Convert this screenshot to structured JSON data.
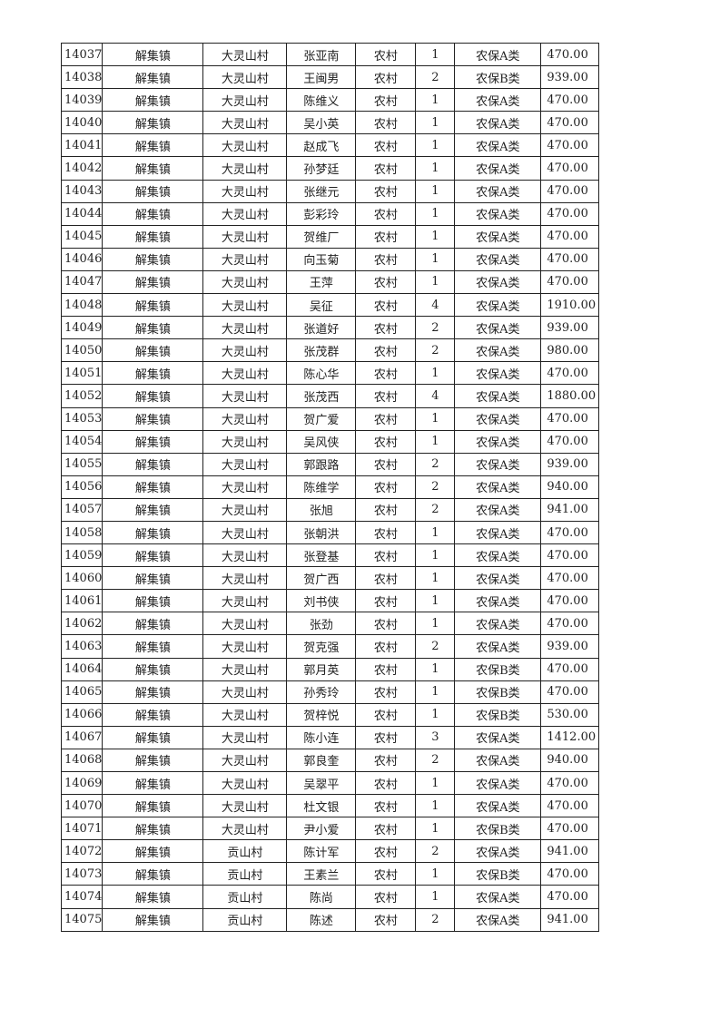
{
  "table": {
    "rows": [
      [
        "14037",
        "解集镇",
        "大灵山村",
        "张亚南",
        "农村",
        "1",
        "农保A类",
        "470.00"
      ],
      [
        "14038",
        "解集镇",
        "大灵山村",
        "王闽男",
        "农村",
        "2",
        "农保B类",
        "939.00"
      ],
      [
        "14039",
        "解集镇",
        "大灵山村",
        "陈维义",
        "农村",
        "1",
        "农保A类",
        "470.00"
      ],
      [
        "14040",
        "解集镇",
        "大灵山村",
        "吴小英",
        "农村",
        "1",
        "农保A类",
        "470.00"
      ],
      [
        "14041",
        "解集镇",
        "大灵山村",
        "赵成飞",
        "农村",
        "1",
        "农保A类",
        "470.00"
      ],
      [
        "14042",
        "解集镇",
        "大灵山村",
        "孙梦廷",
        "农村",
        "1",
        "农保A类",
        "470.00"
      ],
      [
        "14043",
        "解集镇",
        "大灵山村",
        "张继元",
        "农村",
        "1",
        "农保A类",
        "470.00"
      ],
      [
        "14044",
        "解集镇",
        "大灵山村",
        "彭彩玲",
        "农村",
        "1",
        "农保A类",
        "470.00"
      ],
      [
        "14045",
        "解集镇",
        "大灵山村",
        "贺维厂",
        "农村",
        "1",
        "农保A类",
        "470.00"
      ],
      [
        "14046",
        "解集镇",
        "大灵山村",
        "向玉菊",
        "农村",
        "1",
        "农保A类",
        "470.00"
      ],
      [
        "14047",
        "解集镇",
        "大灵山村",
        "王萍",
        "农村",
        "1",
        "农保A类",
        "470.00"
      ],
      [
        "14048",
        "解集镇",
        "大灵山村",
        "吴征",
        "农村",
        "4",
        "农保A类",
        "1910.00"
      ],
      [
        "14049",
        "解集镇",
        "大灵山村",
        "张道好",
        "农村",
        "2",
        "农保A类",
        "939.00"
      ],
      [
        "14050",
        "解集镇",
        "大灵山村",
        "张茂群",
        "农村",
        "2",
        "农保A类",
        "980.00"
      ],
      [
        "14051",
        "解集镇",
        "大灵山村",
        "陈心华",
        "农村",
        "1",
        "农保A类",
        "470.00"
      ],
      [
        "14052",
        "解集镇",
        "大灵山村",
        "张茂西",
        "农村",
        "4",
        "农保A类",
        "1880.00"
      ],
      [
        "14053",
        "解集镇",
        "大灵山村",
        "贺广爱",
        "农村",
        "1",
        "农保A类",
        "470.00"
      ],
      [
        "14054",
        "解集镇",
        "大灵山村",
        "吴风侠",
        "农村",
        "1",
        "农保A类",
        "470.00"
      ],
      [
        "14055",
        "解集镇",
        "大灵山村",
        "郭跟路",
        "农村",
        "2",
        "农保A类",
        "939.00"
      ],
      [
        "14056",
        "解集镇",
        "大灵山村",
        "陈维学",
        "农村",
        "2",
        "农保A类",
        "940.00"
      ],
      [
        "14057",
        "解集镇",
        "大灵山村",
        "张旭",
        "农村",
        "2",
        "农保A类",
        "941.00"
      ],
      [
        "14058",
        "解集镇",
        "大灵山村",
        "张朝洪",
        "农村",
        "1",
        "农保A类",
        "470.00"
      ],
      [
        "14059",
        "解集镇",
        "大灵山村",
        "张登基",
        "农村",
        "1",
        "农保A类",
        "470.00"
      ],
      [
        "14060",
        "解集镇",
        "大灵山村",
        "贺广西",
        "农村",
        "1",
        "农保A类",
        "470.00"
      ],
      [
        "14061",
        "解集镇",
        "大灵山村",
        "刘书侠",
        "农村",
        "1",
        "农保A类",
        "470.00"
      ],
      [
        "14062",
        "解集镇",
        "大灵山村",
        "张劲",
        "农村",
        "1",
        "农保A类",
        "470.00"
      ],
      [
        "14063",
        "解集镇",
        "大灵山村",
        "贺克强",
        "农村",
        "2",
        "农保A类",
        "939.00"
      ],
      [
        "14064",
        "解集镇",
        "大灵山村",
        "郭月英",
        "农村",
        "1",
        "农保B类",
        "470.00"
      ],
      [
        "14065",
        "解集镇",
        "大灵山村",
        "孙秀玲",
        "农村",
        "1",
        "农保B类",
        "470.00"
      ],
      [
        "14066",
        "解集镇",
        "大灵山村",
        "贺梓悦",
        "农村",
        "1",
        "农保B类",
        "530.00"
      ],
      [
        "14067",
        "解集镇",
        "大灵山村",
        "陈小连",
        "农村",
        "3",
        "农保A类",
        "1412.00"
      ],
      [
        "14068",
        "解集镇",
        "大灵山村",
        "郭良奎",
        "农村",
        "2",
        "农保A类",
        "940.00"
      ],
      [
        "14069",
        "解集镇",
        "大灵山村",
        "吴翠平",
        "农村",
        "1",
        "农保A类",
        "470.00"
      ],
      [
        "14070",
        "解集镇",
        "大灵山村",
        "杜文银",
        "农村",
        "1",
        "农保A类",
        "470.00"
      ],
      [
        "14071",
        "解集镇",
        "大灵山村",
        "尹小爱",
        "农村",
        "1",
        "农保B类",
        "470.00"
      ],
      [
        "14072",
        "解集镇",
        "贡山村",
        "陈计军",
        "农村",
        "2",
        "农保A类",
        "941.00"
      ],
      [
        "14073",
        "解集镇",
        "贡山村",
        "王素兰",
        "农村",
        "1",
        "农保B类",
        "470.00"
      ],
      [
        "14074",
        "解集镇",
        "贡山村",
        "陈尚",
        "农村",
        "1",
        "农保A类",
        "470.00"
      ],
      [
        "14075",
        "解集镇",
        "贡山村",
        "陈述",
        "农村",
        "2",
        "农保A类",
        "941.00"
      ]
    ]
  }
}
